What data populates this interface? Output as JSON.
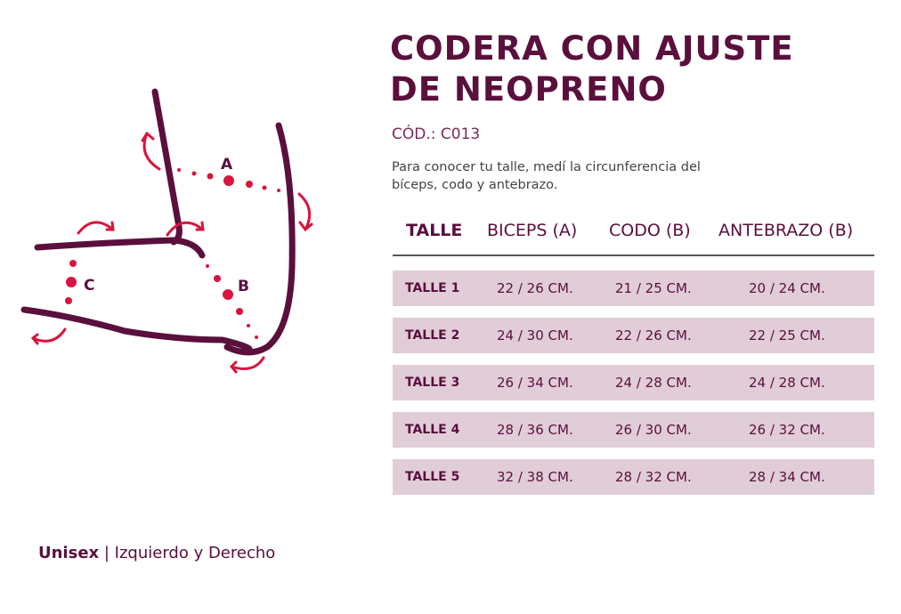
{
  "title_line1": "CODERA CON AJUSTE",
  "title_line2": "DE NEOPRENO",
  "code": "CÓD.: C013",
  "description_line1": "Para conocer tu talle, medí la circunferencia del",
  "description_line2": "bíceps, codo y antebrazo.",
  "table": {
    "headers": [
      "TALLE",
      "BICEPS (A)",
      "CODO (B)",
      "ANTEBRAZO (B)"
    ],
    "rows": [
      {
        "talle": "TALLE 1",
        "biceps": "22 / 26 CM.",
        "codo": "21 / 25 CM.",
        "antebrazo": "20 / 24 CM."
      },
      {
        "talle": "TALLE 2",
        "biceps": "24 / 30 CM.",
        "codo": "22 / 26 CM.",
        "antebrazo": "22 / 25 CM."
      },
      {
        "talle": "TALLE 3",
        "biceps": "26 / 34 CM.",
        "codo": "24 / 28 CM.",
        "antebrazo": "24 / 28 CM."
      },
      {
        "talle": "TALLE 4",
        "biceps": "28 / 36 CM.",
        "codo": "26 / 30 CM.",
        "antebrazo": "26 / 32 CM."
      },
      {
        "talle": "TALLE 5",
        "biceps": "32 / 38 CM.",
        "codo": "28 / 32 CM.",
        "antebrazo": "28 / 34 CM."
      }
    ]
  },
  "diagram": {
    "label_a": "A",
    "label_b": "B",
    "label_c": "C"
  },
  "footer": {
    "bold": "Unisex",
    "separator": " | ",
    "rest": "Izquierdo y Derecho"
  },
  "colors": {
    "primary": "#5a0f3c",
    "accent": "#d9143f",
    "row_bg": "#e0cdd8"
  }
}
